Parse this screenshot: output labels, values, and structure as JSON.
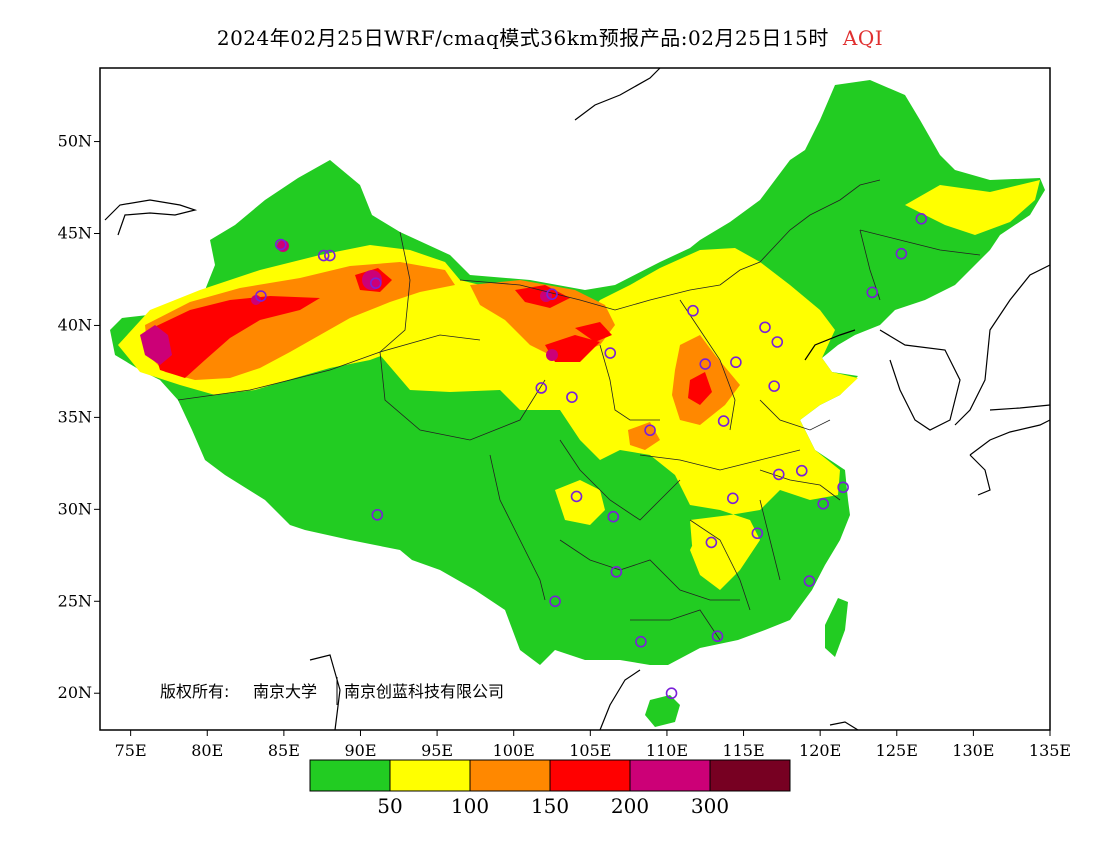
{
  "title": {
    "main": "2024年02月25日WRF/cmaq模式36km预报产品:02月25日15时",
    "variable": "AQI"
  },
  "copyright": {
    "prefix": "版权所有:",
    "org1": "南京大学",
    "org2": "南京创蓝科技有限公司"
  },
  "axes": {
    "lon_range": [
      73,
      135
    ],
    "lat_range": [
      18,
      54
    ],
    "lat_ticks": [
      {
        "value": 20,
        "label": "20N"
      },
      {
        "value": 25,
        "label": "25N"
      },
      {
        "value": 30,
        "label": "30N"
      },
      {
        "value": 35,
        "label": "35N"
      },
      {
        "value": 40,
        "label": "40N"
      },
      {
        "value": 45,
        "label": "45N"
      },
      {
        "value": 50,
        "label": "50N"
      }
    ],
    "lon_ticks": [
      {
        "value": 75,
        "label": "75E"
      },
      {
        "value": 80,
        "label": "80E"
      },
      {
        "value": 85,
        "label": "85E"
      },
      {
        "value": 90,
        "label": "90E"
      },
      {
        "value": 95,
        "label": "95E"
      },
      {
        "value": 100,
        "label": "100E"
      },
      {
        "value": 105,
        "label": "105E"
      },
      {
        "value": 110,
        "label": "110E"
      },
      {
        "value": 115,
        "label": "115E"
      },
      {
        "value": 120,
        "label": "120E"
      },
      {
        "value": 125,
        "label": "125E"
      },
      {
        "value": 130,
        "label": "130E"
      },
      {
        "value": 135,
        "label": "135E"
      }
    ]
  },
  "legend": {
    "colors": [
      "#22cc22",
      "#ffff00",
      "#ff8800",
      "#ff0000",
      "#cc0077",
      "#770022"
    ],
    "labels": [
      "50",
      "100",
      "150",
      "200",
      "300"
    ]
  },
  "stations": [
    [
      88,
      43.8
    ],
    [
      84.8,
      44.4
    ],
    [
      83.5,
      41.6
    ],
    [
      91,
      42.3
    ],
    [
      102.5,
      41.7
    ],
    [
      87.6,
      43.8
    ],
    [
      101.8,
      36.6
    ],
    [
      103.8,
      36.1
    ],
    [
      106.3,
      38.5
    ],
    [
      111.7,
      40.8
    ],
    [
      112.5,
      37.9
    ],
    [
      114.5,
      38.0
    ],
    [
      116.4,
      39.9
    ],
    [
      117.2,
      39.1
    ],
    [
      117,
      36.7
    ],
    [
      113.7,
      34.8
    ],
    [
      108.9,
      34.3
    ],
    [
      104.1,
      30.7
    ],
    [
      106.5,
      29.6
    ],
    [
      114.3,
      30.6
    ],
    [
      112.9,
      28.2
    ],
    [
      115.9,
      28.7
    ],
    [
      117.3,
      31.9
    ],
    [
      118.8,
      32.1
    ],
    [
      120.2,
      30.3
    ],
    [
      121.5,
      31.2
    ],
    [
      119.3,
      26.1
    ],
    [
      113.3,
      23.1
    ],
    [
      108.3,
      22.8
    ],
    [
      110.3,
      20.0
    ],
    [
      102.7,
      25.0
    ],
    [
      106.7,
      26.6
    ],
    [
      91.1,
      29.7
    ],
    [
      123.4,
      41.8
    ],
    [
      125.3,
      43.9
    ],
    [
      126.6,
      45.8
    ]
  ]
}
